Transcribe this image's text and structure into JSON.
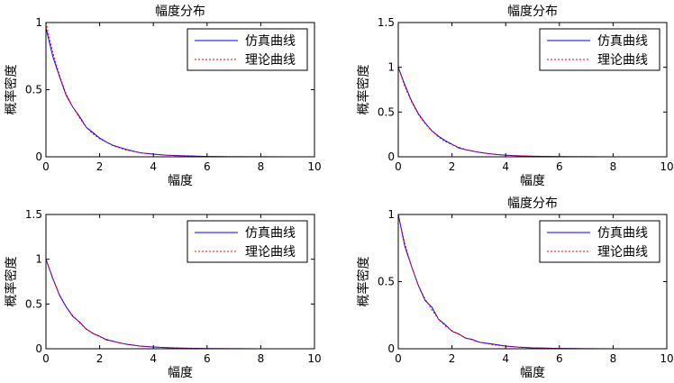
{
  "chart_data": [
    {
      "type": "line",
      "title": "幅度分布",
      "xlabel": "幅度",
      "ylabel": "概率密度",
      "xlim": [
        0,
        10
      ],
      "ylim": [
        0,
        1
      ],
      "xticks": [
        "0",
        "2",
        "4",
        "6",
        "8",
        "10"
      ],
      "yticks": [
        "0",
        "0.5",
        "1"
      ],
      "grid": false,
      "legend_position": "top-right",
      "colors": {
        "simulation": "#0000ff",
        "theory": "#ff0000"
      },
      "series": [
        {
          "name": "仿真曲线",
          "style": "solid",
          "x": [
            0,
            0.25,
            0.5,
            0.75,
            1.0,
            1.25,
            1.5,
            1.75,
            2.0,
            2.25,
            2.5,
            2.75,
            3.0,
            3.5,
            4.0,
            4.5,
            5.0,
            6.0,
            7.0,
            8.0,
            9.0,
            9.6
          ],
          "y": [
            0.96,
            0.75,
            0.6,
            0.46,
            0.37,
            0.3,
            0.22,
            0.18,
            0.14,
            0.11,
            0.085,
            0.07,
            0.055,
            0.03,
            0.02,
            0.012,
            0.008,
            0.003,
            0.001,
            0.001,
            0.0,
            0.0
          ]
        },
        {
          "name": "理论曲线",
          "style": "dotted",
          "x": [
            0,
            0.25,
            0.5,
            0.75,
            1.0,
            1.25,
            1.5,
            1.75,
            2.0,
            2.5,
            3.0,
            3.5,
            4.0,
            5.0,
            6.0,
            7.0,
            8.0,
            9.0,
            10.0
          ],
          "y": [
            1.0,
            0.78,
            0.61,
            0.47,
            0.37,
            0.29,
            0.22,
            0.17,
            0.135,
            0.082,
            0.05,
            0.03,
            0.018,
            0.007,
            0.0025,
            0.001,
            0.0003,
            0.0001,
            0.0
          ]
        }
      ]
    },
    {
      "type": "line",
      "title": "幅度分布",
      "xlabel": "幅度",
      "ylabel": "概率密度",
      "xlim": [
        0,
        10
      ],
      "ylim": [
        0,
        1.5
      ],
      "xticks": [
        "0",
        "2",
        "4",
        "6",
        "8",
        "10"
      ],
      "yticks": [
        "0",
        "0.5",
        "1",
        "1.5"
      ],
      "grid": false,
      "legend_position": "top-right",
      "colors": {
        "simulation": "#0000ff",
        "theory": "#ff0000"
      },
      "series": [
        {
          "name": "仿真曲线",
          "style": "solid",
          "x": [
            0,
            0.25,
            0.5,
            0.75,
            1.0,
            1.25,
            1.5,
            1.75,
            2.0,
            2.25,
            2.5,
            2.75,
            3.0,
            3.5,
            4.0,
            4.5,
            5.0,
            6.0,
            7.0,
            8.0,
            9.0,
            10.0
          ],
          "y": [
            1.0,
            0.8,
            0.62,
            0.48,
            0.38,
            0.29,
            0.23,
            0.18,
            0.14,
            0.1,
            0.08,
            0.065,
            0.05,
            0.03,
            0.018,
            0.01,
            0.006,
            0.002,
            0.001,
            0.0,
            0.0,
            0.0
          ]
        },
        {
          "name": "理论曲线",
          "style": "dotted",
          "x": [
            0,
            0.25,
            0.5,
            0.75,
            1.0,
            1.25,
            1.5,
            1.75,
            2.0,
            2.5,
            3.0,
            3.5,
            4.0,
            5.0,
            6.0,
            7.0,
            8.0,
            9.0,
            10.0
          ],
          "y": [
            1.0,
            0.78,
            0.61,
            0.47,
            0.37,
            0.29,
            0.22,
            0.17,
            0.135,
            0.082,
            0.05,
            0.03,
            0.018,
            0.007,
            0.0025,
            0.001,
            0.0003,
            0.0001,
            0.0
          ]
        }
      ]
    },
    {
      "type": "line",
      "title": "",
      "xlabel": "幅度",
      "ylabel": "概率密度",
      "xlim": [
        0,
        10
      ],
      "ylim": [
        0,
        1.5
      ],
      "xticks": [
        "0",
        "2",
        "4",
        "6",
        "8",
        "10"
      ],
      "yticks": [
        "0",
        "0.5",
        "1",
        "1.5"
      ],
      "grid": false,
      "legend_position": "top-right",
      "colors": {
        "simulation": "#0000ff",
        "theory": "#ff0000"
      },
      "series": [
        {
          "name": "仿真曲线",
          "style": "solid",
          "x": [
            0,
            0.25,
            0.5,
            0.75,
            1.0,
            1.25,
            1.5,
            1.75,
            2.0,
            2.25,
            2.5,
            2.75,
            3.0,
            3.5,
            4.0,
            4.5,
            5.0,
            6.0,
            7.0,
            8.0,
            8.5
          ],
          "y": [
            1.0,
            0.79,
            0.6,
            0.47,
            0.36,
            0.3,
            0.22,
            0.17,
            0.14,
            0.1,
            0.085,
            0.065,
            0.05,
            0.03,
            0.02,
            0.012,
            0.007,
            0.002,
            0.001,
            0.0,
            0.0
          ]
        },
        {
          "name": "理论曲线",
          "style": "dotted",
          "x": [
            0,
            0.25,
            0.5,
            0.75,
            1.0,
            1.25,
            1.5,
            1.75,
            2.0,
            2.5,
            3.0,
            3.5,
            4.0,
            5.0,
            6.0,
            7.0,
            8.0,
            9.0,
            10.0
          ],
          "y": [
            1.0,
            0.78,
            0.61,
            0.47,
            0.37,
            0.29,
            0.22,
            0.17,
            0.135,
            0.082,
            0.05,
            0.03,
            0.018,
            0.007,
            0.0025,
            0.001,
            0.0003,
            0.0001,
            0.0
          ]
        }
      ]
    },
    {
      "type": "line",
      "title": "幅度分布",
      "xlabel": "幅度",
      "ylabel": "概率密度",
      "xlim": [
        0,
        10
      ],
      "ylim": [
        0,
        1
      ],
      "xticks": [
        "0",
        "2",
        "4",
        "6",
        "8",
        "10"
      ],
      "yticks": [
        "0",
        "0.5",
        "1"
      ],
      "grid": false,
      "legend_position": "top-right",
      "colors": {
        "simulation": "#0000ff",
        "theory": "#ff0000"
      },
      "series": [
        {
          "name": "仿真曲线",
          "style": "solid",
          "x": [
            0,
            0.25,
            0.5,
            0.75,
            1.0,
            1.25,
            1.5,
            1.75,
            2.0,
            2.25,
            2.5,
            2.75,
            3.0,
            3.5,
            4.0,
            4.5,
            5.0,
            6.0,
            7.0,
            8.0,
            8.5
          ],
          "y": [
            1.0,
            0.76,
            0.61,
            0.47,
            0.36,
            0.31,
            0.22,
            0.18,
            0.13,
            0.11,
            0.08,
            0.07,
            0.05,
            0.035,
            0.02,
            0.012,
            0.007,
            0.003,
            0.001,
            0.0,
            0.0
          ]
        },
        {
          "name": "理论曲线",
          "style": "dotted",
          "x": [
            0,
            0.25,
            0.5,
            0.75,
            1.0,
            1.25,
            1.5,
            1.75,
            2.0,
            2.5,
            3.0,
            3.5,
            4.0,
            5.0,
            6.0,
            7.0,
            8.0,
            9.0,
            10.0
          ],
          "y": [
            1.0,
            0.78,
            0.61,
            0.47,
            0.37,
            0.29,
            0.22,
            0.17,
            0.135,
            0.082,
            0.05,
            0.03,
            0.018,
            0.007,
            0.0025,
            0.001,
            0.0003,
            0.0001,
            0.0
          ]
        }
      ]
    }
  ]
}
